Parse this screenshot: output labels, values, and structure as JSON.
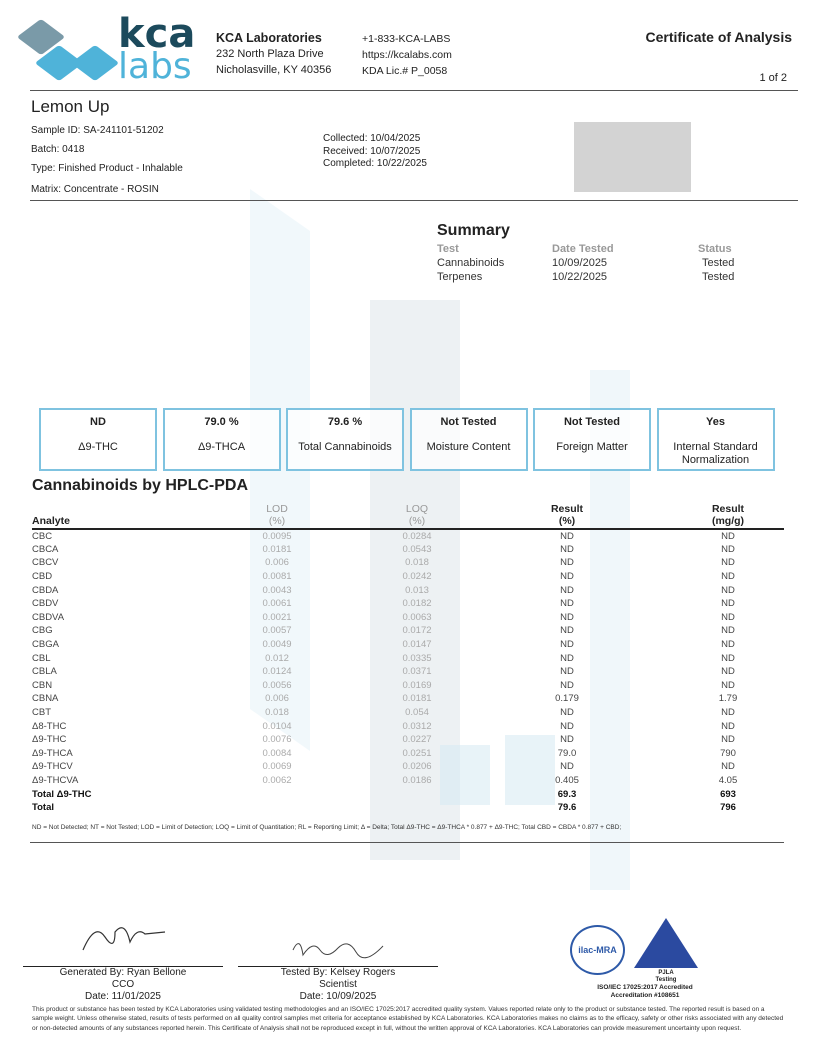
{
  "header": {
    "logo_text_top": "kca",
    "logo_text_bottom": "labs",
    "company": "KCA Laboratories",
    "address1": "232 North Plaza Drive",
    "address2": "Nicholasville, KY 40356",
    "phone": "+1-833-KCA-LABS",
    "website": "https://kcalabs.com",
    "license": "KDA Lic.# P_0058",
    "doc_title": "Certificate of Analysis",
    "page": "1 of 2"
  },
  "sample": {
    "name": "Lemon Up",
    "id": "Sample ID: SA-241101-51202",
    "batch": "Batch: 0418",
    "type": "Type: Finished Product - Inhalable",
    "matrix": "Matrix: Concentrate - ROSIN",
    "collected": "Collected: 10/04/2025",
    "received": "Received: 10/07/2025",
    "completed": "Completed: 10/22/2025"
  },
  "summary": {
    "title": "Summary",
    "headers": [
      "Test",
      "Date Tested",
      "Status"
    ],
    "rows": [
      [
        "Cannabinoids",
        "10/09/2025",
        "Tested"
      ],
      [
        "Terpenes",
        "10/22/2025",
        "Tested"
      ]
    ]
  },
  "boxes": [
    {
      "value": "ND",
      "label": "Δ9-THC"
    },
    {
      "value": "79.0 %",
      "label": "Δ9-THCA"
    },
    {
      "value": "79.6 %",
      "label": "Total Cannabinoids"
    },
    {
      "value": "Not Tested",
      "label": "Moisture Content"
    },
    {
      "value": "Not Tested",
      "label": "Foreign Matter"
    },
    {
      "value": "Yes",
      "label": "Internal Standard Normalization"
    }
  ],
  "cannabinoids": {
    "title": "Cannabinoids by HPLC-PDA",
    "headers": {
      "analyte": "Analyte",
      "lod": "LOD",
      "lod_unit": "(%)",
      "loq": "LOQ",
      "loq_unit": "(%)",
      "res_pct": "Result",
      "res_pct_unit": "(%)",
      "res_mg": "Result",
      "res_mg_unit": "(mg/g)"
    },
    "rows": [
      [
        "CBC",
        "0.0095",
        "0.0284",
        "ND",
        "ND"
      ],
      [
        "CBCA",
        "0.0181",
        "0.0543",
        "ND",
        "ND"
      ],
      [
        "CBCV",
        "0.006",
        "0.018",
        "ND",
        "ND"
      ],
      [
        "CBD",
        "0.0081",
        "0.0242",
        "ND",
        "ND"
      ],
      [
        "CBDA",
        "0.0043",
        "0.013",
        "ND",
        "ND"
      ],
      [
        "CBDV",
        "0.0061",
        "0.0182",
        "ND",
        "ND"
      ],
      [
        "CBDVA",
        "0.0021",
        "0.0063",
        "ND",
        "ND"
      ],
      [
        "CBG",
        "0.0057",
        "0.0172",
        "ND",
        "ND"
      ],
      [
        "CBGA",
        "0.0049",
        "0.0147",
        "ND",
        "ND"
      ],
      [
        "CBL",
        "0.012",
        "0.0335",
        "ND",
        "ND"
      ],
      [
        "CBLA",
        "0.0124",
        "0.0371",
        "ND",
        "ND"
      ],
      [
        "CBN",
        "0.0056",
        "0.0169",
        "ND",
        "ND"
      ],
      [
        "CBNA",
        "0.006",
        "0.0181",
        "0.179",
        "1.79"
      ],
      [
        "CBT",
        "0.018",
        "0.054",
        "ND",
        "ND"
      ],
      [
        "Δ8-THC",
        "0.0104",
        "0.0312",
        "ND",
        "ND"
      ],
      [
        "Δ9-THC",
        "0.0076",
        "0.0227",
        "ND",
        "ND"
      ],
      [
        "Δ9-THCA",
        "0.0084",
        "0.0251",
        "79.0",
        "790"
      ],
      [
        "Δ9-THCV",
        "0.0069",
        "0.0206",
        "ND",
        "ND"
      ],
      [
        "Δ9-THCVA",
        "0.0062",
        "0.0186",
        "0.405",
        "4.05"
      ]
    ],
    "totals": [
      [
        "Total Δ9-THC",
        "69.3",
        "693"
      ],
      [
        "Total",
        "79.6",
        "796"
      ]
    ],
    "footnote": "ND = Not Detected; NT = Not Tested; LOD = Limit of Detection; LOQ = Limit of Quantitation; RL = Reporting Limit; Δ = Delta; Total Δ9-THC = Δ9-THCA * 0.877 + Δ9-THC; Total CBD = CBDA * 0.877 + CBD;"
  },
  "signatures": [
    {
      "line1": "Generated By: Ryan Bellone",
      "line2": "CCO",
      "line3": "Date: 11/01/2025"
    },
    {
      "line1": "Tested By: Kelsey Rogers",
      "line2": "Scientist",
      "line3": "Date: 10/09/2025"
    }
  ],
  "accreditation": {
    "ilac": "ilac-MRA",
    "pjla": "PJLA",
    "pjla_sub": "Testing",
    "line1": "ISO/IEC 17025:2017 Accredited",
    "line2": "Accreditation #108651"
  },
  "disclaimer": "This product or substance has been tested by KCA Laboratories using validated testing methodologies and an ISO/IEC 17025:2017 accredited quality system. Values reported relate only to the product or substance tested. The reported result is based on a sample weight. Unless otherwise stated, results of tests performed on all quality control samples met criteria for acceptance established by KCA Laboratories. KCA Laboratories makes no claims as to the efficacy, safety or other risks associated with any detected or non-detected amounts of any substances reported herein. This Certificate of Analysis shall not be reproduced except in full, without the written approval of KCA Laboratories. KCA Laboratories can provide measurement uncertainty upon request.",
  "colors": {
    "accent": "#4fb3d9",
    "brand_dark": "#1c4a5c",
    "box_border": "#7fc3e0"
  }
}
